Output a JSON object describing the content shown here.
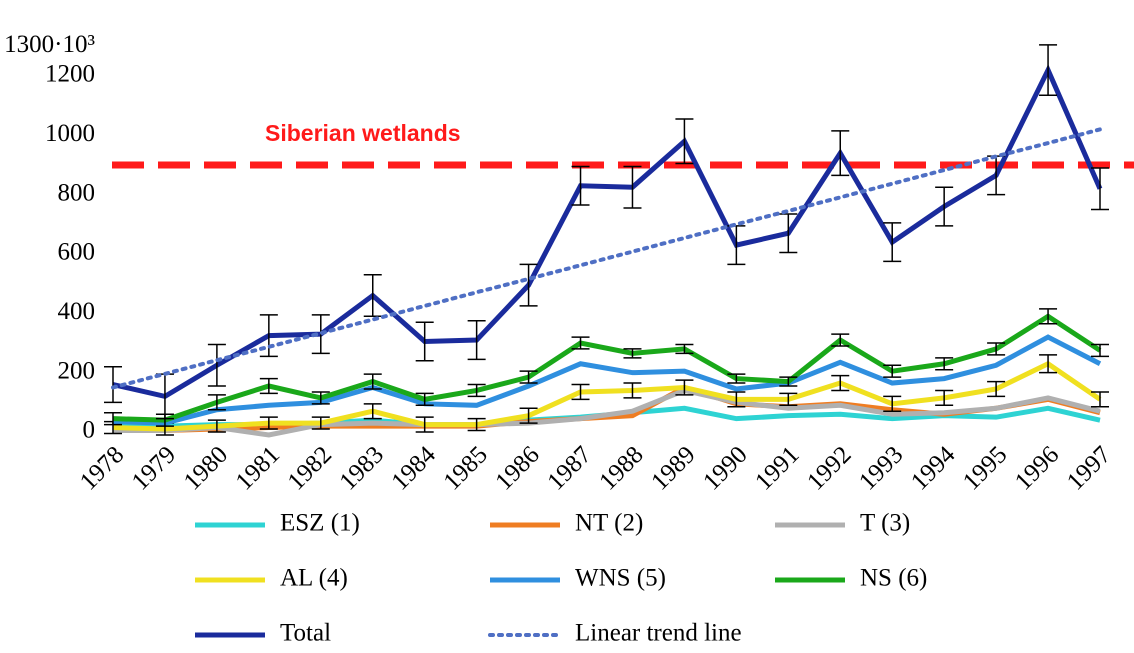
{
  "chart_data": {
    "type": "line",
    "categories": [
      "1978",
      "1979",
      "1980",
      "1981",
      "1982",
      "1983",
      "1984",
      "1985",
      "1986",
      "1987",
      "1988",
      "1989",
      "1990",
      "1991",
      "1992",
      "1993",
      "1994",
      "1995",
      "1996",
      "1997"
    ],
    "ylim": [
      0,
      1300
    ],
    "yticks": [
      0,
      200,
      400,
      600,
      800,
      1000,
      1200,
      {
        "value": 1300,
        "label": "1300·10³"
      }
    ],
    "reference": {
      "value": 900,
      "label": "Siberian wetlands",
      "color": "#ff1a1a"
    },
    "series": [
      {
        "name": "ESZ (1)",
        "color": "#2ed3d3",
        "values": [
          30,
          20,
          25,
          25,
          30,
          40,
          25,
          25,
          40,
          50,
          65,
          80,
          45,
          55,
          60,
          45,
          55,
          50,
          80,
          40
        ]
      },
      {
        "name": "NT (2)",
        "color": "#ef7d22",
        "values": [
          10,
          5,
          10,
          15,
          20,
          20,
          20,
          20,
          35,
          45,
          55,
          150,
          95,
          85,
          95,
          75,
          60,
          80,
          110,
          65
        ]
      },
      {
        "name": "T (3)",
        "color": "#b0b0b0",
        "values": [
          5,
          5,
          15,
          -10,
          25,
          30,
          25,
          25,
          30,
          45,
          70,
          140,
          100,
          80,
          90,
          60,
          65,
          80,
          115,
          70
        ]
      },
      {
        "name": "AL (4)",
        "color": "#f0e020",
        "values": [
          15,
          10,
          20,
          30,
          30,
          70,
          25,
          25,
          55,
          135,
          140,
          150,
          110,
          110,
          165,
          95,
          115,
          145,
          230,
          110
        ],
        "errors": [
          20,
          20,
          20,
          20,
          20,
          25,
          25,
          20,
          25,
          25,
          25,
          25,
          25,
          20,
          25,
          25,
          25,
          25,
          30,
          25
        ]
      },
      {
        "name": "WNS (5)",
        "color": "#2f8fdf",
        "values": [
          35,
          30,
          75,
          90,
          100,
          150,
          95,
          90,
          155,
          230,
          200,
          205,
          145,
          165,
          235,
          165,
          180,
          225,
          320,
          230
        ]
      },
      {
        "name": "NS (6)",
        "color": "#1aa81a",
        "values": [
          45,
          40,
          100,
          155,
          115,
          170,
          110,
          140,
          185,
          300,
          265,
          280,
          180,
          170,
          310,
          205,
          230,
          280,
          390,
          275
        ],
        "errors": [
          20,
          20,
          25,
          25,
          20,
          25,
          20,
          20,
          20,
          20,
          15,
          15,
          15,
          15,
          20,
          20,
          20,
          20,
          25,
          20
        ]
      },
      {
        "name": "Total",
        "color": "#1a2b9c",
        "values": [
          160,
          120,
          225,
          325,
          330,
          460,
          305,
          310,
          495,
          830,
          825,
          980,
          630,
          670,
          940,
          640,
          760,
          865,
          1220,
          820
        ],
        "errors": [
          60,
          75,
          70,
          70,
          65,
          70,
          65,
          65,
          70,
          65,
          70,
          75,
          65,
          65,
          75,
          65,
          65,
          65,
          85,
          70
        ]
      },
      {
        "name": "Linear trend line",
        "color": "#4f6fc4",
        "dotted": true,
        "values": [
          150,
          196,
          242,
          287,
          333,
          379,
          425,
          471,
          516,
          562,
          608,
          654,
          700,
          745,
          791,
          837,
          883,
          929,
          974,
          1020
        ]
      }
    ]
  }
}
